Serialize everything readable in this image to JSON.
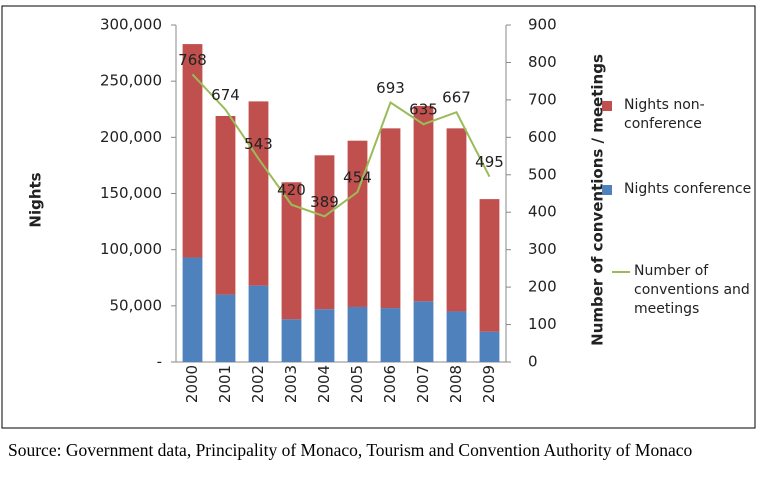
{
  "chart_data": {
    "type": "bar",
    "ylabel": "Nights",
    "y2label": "Number of conventions / meetings",
    "categories": [
      "2000",
      "2001",
      "2002",
      "2003",
      "2004",
      "2005",
      "2006",
      "2007",
      "2008",
      "2009"
    ],
    "series": [
      {
        "name": "Nights conference",
        "color": "#4f81bd",
        "values": [
          93000,
          60000,
          68000,
          38000,
          47000,
          49000,
          48000,
          54000,
          45000,
          27000
        ]
      },
      {
        "name": "Nights non-conference",
        "color": "#c0504d",
        "values": [
          190000,
          159000,
          164000,
          122000,
          137000,
          148000,
          160000,
          174000,
          163000,
          118000
        ]
      },
      {
        "name": "Number of conventions and meetings",
        "color": "#9bbb59",
        "axis": "y2",
        "type": "line",
        "values": [
          768,
          674,
          543,
          420,
          389,
          454,
          693,
          635,
          667,
          495
        ]
      }
    ],
    "ylim": [
      0,
      300000
    ],
    "yticks": [
      {
        "value": 0,
        "label": "-"
      },
      {
        "value": 50000,
        "label": "50,000"
      },
      {
        "value": 100000,
        "label": "100,000"
      },
      {
        "value": 150000,
        "label": "150,000"
      },
      {
        "value": 200000,
        "label": "200,000"
      },
      {
        "value": 250000,
        "label": "250,000"
      },
      {
        "value": 300000,
        "label": "300,000"
      }
    ],
    "y2lim": [
      0,
      900
    ],
    "y2ticks": [
      0,
      100,
      200,
      300,
      400,
      500,
      600,
      700,
      800,
      900
    ],
    "source": "Source: Government data, Principality of Monaco, Tourism and Convention Authority of Monaco"
  }
}
